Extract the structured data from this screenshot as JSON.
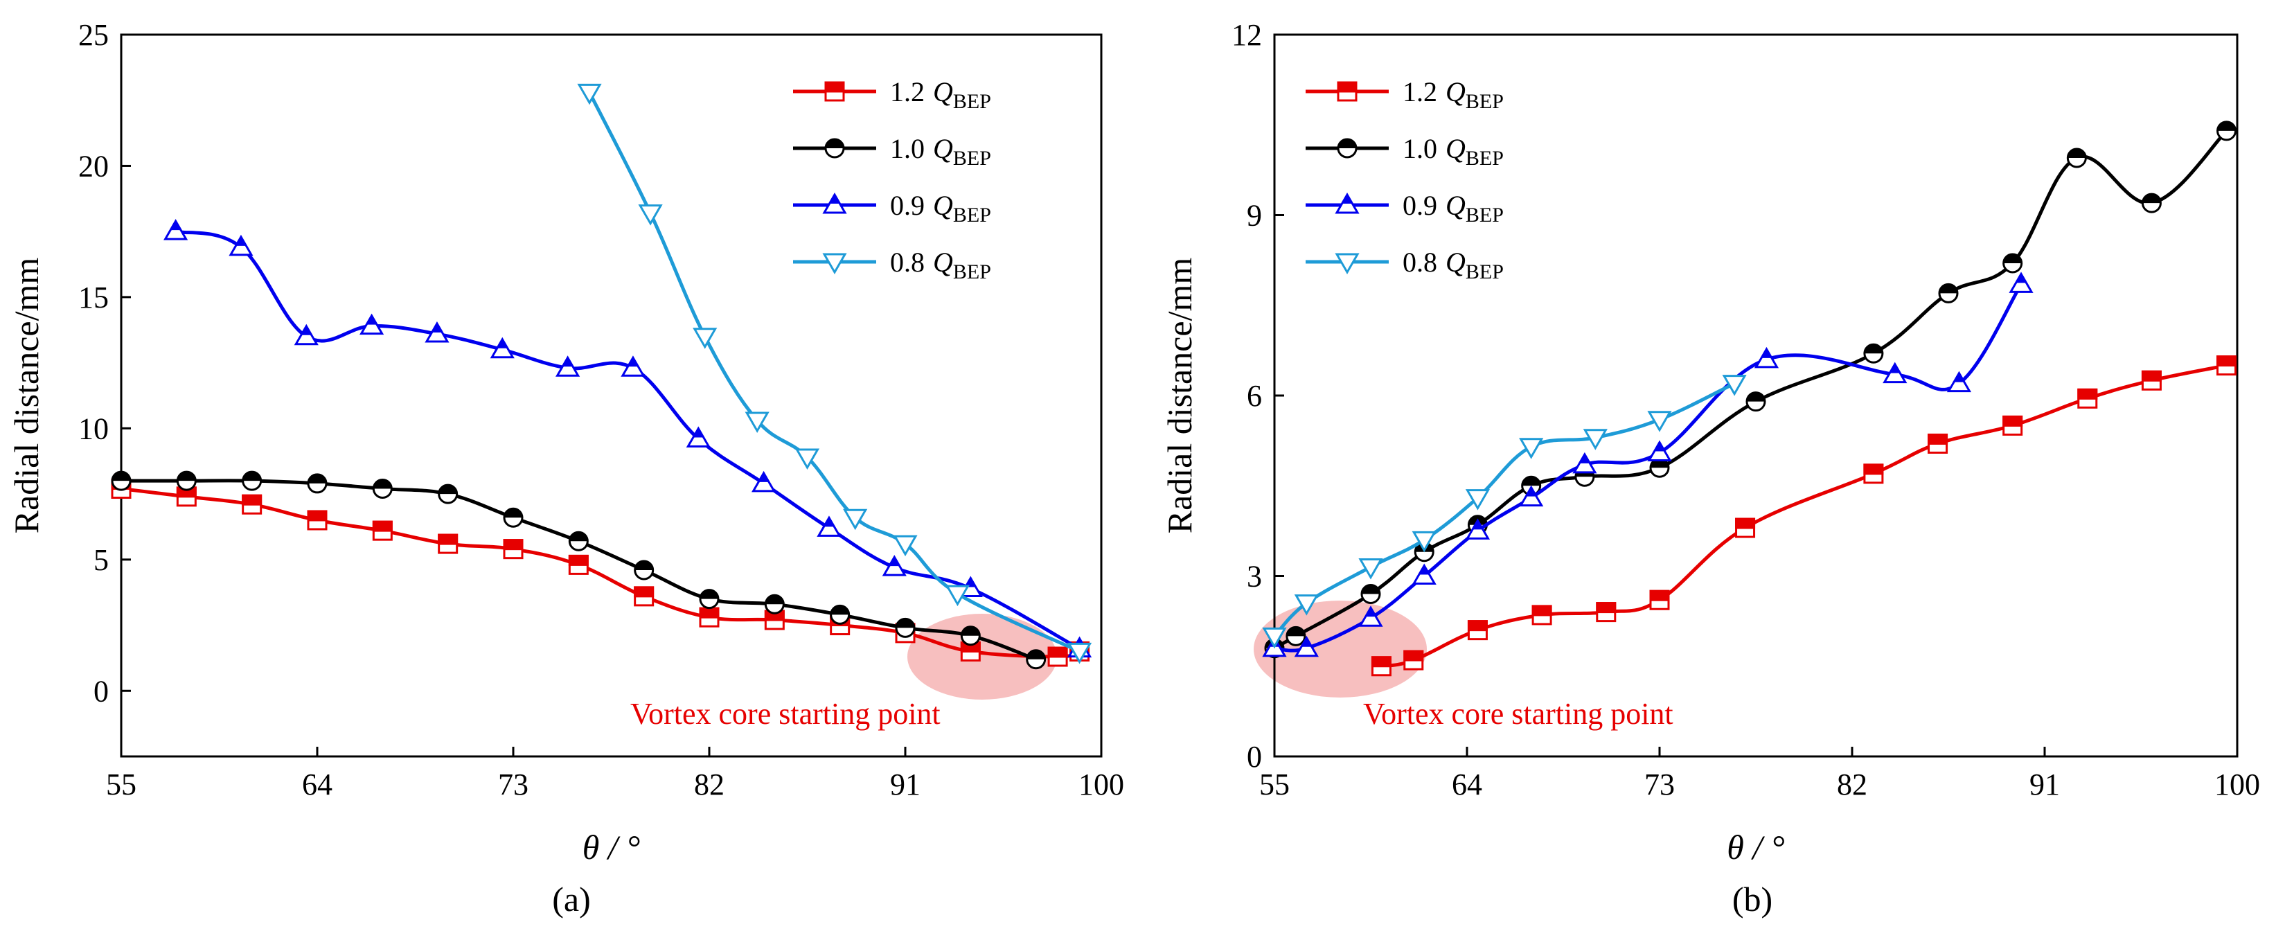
{
  "chart_data": [
    {
      "type": "line",
      "caption": "(a)",
      "xlabel": "θ / °",
      "ylabel": "Radial distance/mm",
      "xlim": [
        55,
        100
      ],
      "ylim": [
        -2.5,
        25
      ],
      "xticks": [
        55,
        64,
        73,
        82,
        91,
        100
      ],
      "yticks": [
        0,
        5,
        10,
        15,
        20,
        25
      ],
      "annotation": "Vortex core starting point",
      "legend_position": "top-right",
      "series": [
        {
          "name": "1.2 QBEP",
          "label_num": "1.2",
          "label_q": "Q",
          "label_sub": "BEP",
          "color": "#e60000",
          "marker": "square",
          "x": [
            55,
            58,
            61,
            64,
            67,
            70,
            73,
            76,
            79,
            82,
            85,
            88,
            91,
            94,
            98,
            99
          ],
          "y": [
            7.7,
            7.4,
            7.1,
            6.5,
            6.1,
            5.6,
            5.4,
            4.8,
            3.6,
            2.8,
            2.7,
            2.5,
            2.2,
            1.5,
            1.3,
            1.5
          ]
        },
        {
          "name": "1.0 QBEP",
          "label_num": "1.0",
          "label_q": "Q",
          "label_sub": "BEP",
          "color": "#000000",
          "marker": "circle",
          "x": [
            55,
            58,
            61,
            64,
            67,
            70,
            73,
            76,
            79,
            82,
            85,
            88,
            91,
            94,
            97
          ],
          "y": [
            8.0,
            8.0,
            8.0,
            7.9,
            7.7,
            7.5,
            6.6,
            5.7,
            4.6,
            3.5,
            3.3,
            2.9,
            2.4,
            2.1,
            1.2
          ]
        },
        {
          "name": "0.9 QBEP",
          "label_num": "0.9",
          "label_q": "Q",
          "label_sub": "BEP",
          "color": "#0000ee",
          "marker": "triangle-up",
          "x": [
            57.5,
            60.5,
            63.5,
            66.5,
            69.5,
            72.5,
            75.5,
            78.5,
            81.5,
            84.5,
            87.5,
            90.5,
            94,
            99
          ],
          "y": [
            17.5,
            16.9,
            13.5,
            13.9,
            13.6,
            13.0,
            12.3,
            12.3,
            9.6,
            7.9,
            6.2,
            4.7,
            3.9,
            1.6
          ]
        },
        {
          "name": "0.8 QBEP",
          "label_num": "0.8",
          "label_q": "Q",
          "label_sub": "BEP",
          "color": "#1e9bd7",
          "marker": "triangle-down",
          "x": [
            76.5,
            79.3,
            81.8,
            84.2,
            86.5,
            88.7,
            91,
            93.4,
            99
          ],
          "y": [
            22.8,
            18.2,
            13.5,
            10.3,
            8.9,
            6.6,
            5.6,
            3.7,
            1.5
          ]
        }
      ]
    },
    {
      "type": "line",
      "caption": "(b)",
      "xlabel": "θ / °",
      "ylabel": "Radial distance/mm",
      "xlim": [
        55,
        100
      ],
      "ylim": [
        0,
        12
      ],
      "xticks": [
        55,
        64,
        73,
        82,
        91,
        100
      ],
      "yticks": [
        0,
        3,
        6,
        9,
        12
      ],
      "annotation": "Vortex core starting point",
      "legend_position": "top-left",
      "series": [
        {
          "name": "1.2 QBEP",
          "label_num": "1.2",
          "label_q": "Q",
          "label_sub": "BEP",
          "color": "#e60000",
          "marker": "square",
          "x": [
            60,
            61.5,
            64.5,
            67.5,
            70.5,
            73,
            77,
            83,
            86,
            89.5,
            93,
            96,
            99.5
          ],
          "y": [
            1.5,
            1.6,
            2.1,
            2.35,
            2.4,
            2.6,
            3.8,
            4.7,
            5.2,
            5.5,
            5.95,
            6.25,
            6.5
          ]
        },
        {
          "name": "1.0 QBEP",
          "label_num": "1.0",
          "label_q": "Q",
          "label_sub": "BEP",
          "color": "#000000",
          "marker": "circle",
          "x": [
            55,
            56,
            59.5,
            62,
            64.5,
            67,
            69.5,
            73,
            77.5,
            83,
            86.5,
            89.5,
            92.5,
            96,
            99.5
          ],
          "y": [
            1.8,
            2.0,
            2.7,
            3.4,
            3.85,
            4.5,
            4.65,
            4.8,
            5.9,
            6.7,
            7.7,
            8.2,
            9.95,
            9.2,
            10.4
          ]
        },
        {
          "name": "0.9 QBEP",
          "label_num": "0.9",
          "label_q": "Q",
          "label_sub": "BEP",
          "color": "#0000ee",
          "marker": "triangle-up",
          "x": [
            55,
            56.5,
            59.5,
            62,
            64.5,
            67,
            69.5,
            73,
            78,
            84,
            87,
            89.9
          ],
          "y": [
            1.8,
            1.8,
            2.3,
            3.0,
            3.75,
            4.3,
            4.85,
            5.05,
            6.6,
            6.35,
            6.2,
            7.85
          ]
        },
        {
          "name": "0.8 QBEP",
          "label_num": "0.8",
          "label_q": "Q",
          "label_sub": "BEP",
          "color": "#1e9bd7",
          "marker": "triangle-down",
          "x": [
            55,
            56.5,
            59.5,
            62,
            64.5,
            67,
            70,
            73,
            76.5
          ],
          "y": [
            2.0,
            2.55,
            3.15,
            3.6,
            4.3,
            5.15,
            5.3,
            5.6,
            6.2
          ]
        }
      ]
    }
  ]
}
